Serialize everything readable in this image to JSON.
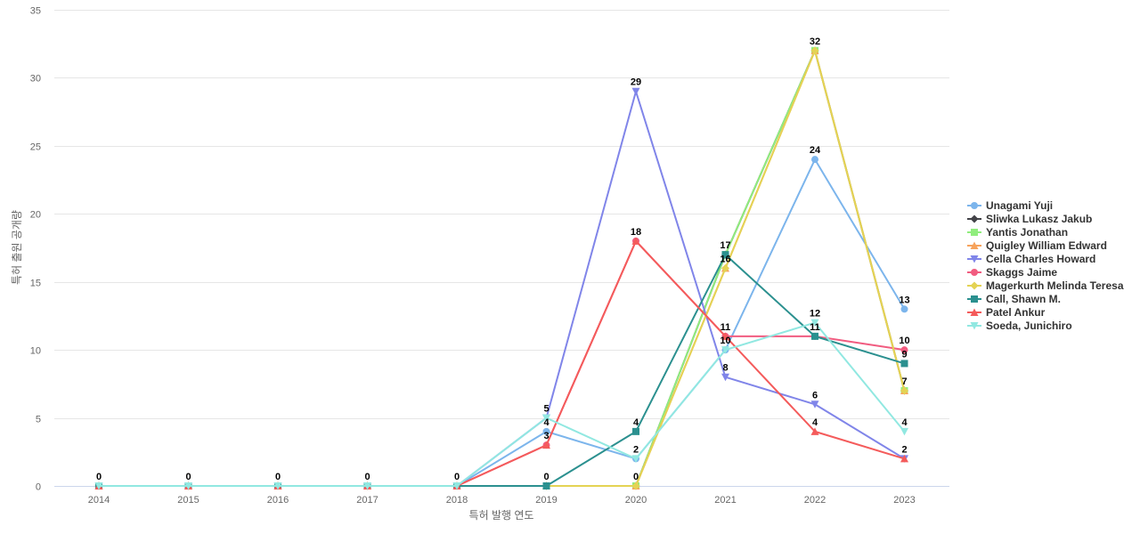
{
  "chart_data": {
    "type": "line",
    "title": "",
    "xlabel": "특허 발행 연도",
    "ylabel": "특허 출원 공개량",
    "x": [
      "2014",
      "2015",
      "2016",
      "2017",
      "2018",
      "2019",
      "2020",
      "2021",
      "2022",
      "2023"
    ],
    "ylim": [
      0,
      35
    ],
    "yticks": [
      0,
      5,
      10,
      15,
      20,
      25,
      30,
      35
    ],
    "grid": true,
    "legend_position": "right",
    "series": [
      {
        "name": "Unagami Yuji",
        "color": "#7cb5ec",
        "marker": "circle",
        "values": [
          0,
          0,
          0,
          0,
          0,
          4,
          2,
          10,
          24,
          13
        ]
      },
      {
        "name": "Sliwka Lukasz Jakub",
        "color": "#434348",
        "marker": "diamond",
        "values": [
          0,
          0,
          0,
          0,
          0,
          0,
          0,
          17,
          32,
          7
        ]
      },
      {
        "name": "Yantis Jonathan",
        "color": "#90ed7d",
        "marker": "square",
        "values": [
          0,
          0,
          0,
          0,
          0,
          0,
          0,
          17,
          32,
          7
        ]
      },
      {
        "name": "Quigley William Edward",
        "color": "#f7a35c",
        "marker": "triangle",
        "values": [
          0,
          0,
          0,
          0,
          0,
          0,
          0,
          16,
          32,
          7
        ]
      },
      {
        "name": "Cella Charles Howard",
        "color": "#8085e9",
        "marker": "triangle-down",
        "values": [
          0,
          0,
          0,
          0,
          0,
          5,
          29,
          8,
          6,
          2
        ]
      },
      {
        "name": "Skaggs Jaime",
        "color": "#f15c80",
        "marker": "circle",
        "values": [
          0,
          0,
          0,
          0,
          0,
          3,
          18,
          11,
          11,
          10
        ]
      },
      {
        "name": "Magerkurth Melinda Teresa",
        "color": "#e4d354",
        "marker": "diamond",
        "values": [
          0,
          0,
          0,
          0,
          0,
          0,
          0,
          16,
          32,
          7
        ]
      },
      {
        "name": "Call, Shawn M.",
        "color": "#2b908f",
        "marker": "square",
        "values": [
          0,
          0,
          0,
          0,
          0,
          0,
          4,
          17,
          11,
          9
        ]
      },
      {
        "name": "Patel Ankur",
        "color": "#f45b5b",
        "marker": "triangle",
        "values": [
          0,
          0,
          0,
          0,
          0,
          3,
          18,
          11,
          4,
          2
        ]
      },
      {
        "name": "Soeda, Junichiro",
        "color": "#91e8e1",
        "marker": "triangle-down",
        "values": [
          0,
          0,
          0,
          0,
          0,
          5,
          2,
          10,
          12,
          4
        ]
      }
    ],
    "data_labels": [
      {
        "x": "2014",
        "text": "0",
        "y": 0
      },
      {
        "x": "2015",
        "text": "0",
        "y": 0
      },
      {
        "x": "2016",
        "text": "0",
        "y": 0
      },
      {
        "x": "2017",
        "text": "0",
        "y": 0
      },
      {
        "x": "2018",
        "text": "0",
        "y": 0
      },
      {
        "x": "2019",
        "text": "5",
        "y": 5
      },
      {
        "x": "2019",
        "text": "4",
        "y": 4
      },
      {
        "x": "2019",
        "text": "3",
        "y": 3
      },
      {
        "x": "2019",
        "text": "0",
        "y": 0
      },
      {
        "x": "2020",
        "text": "29",
        "y": 29
      },
      {
        "x": "2020",
        "text": "18",
        "y": 18
      },
      {
        "x": "2020",
        "text": "4",
        "y": 4
      },
      {
        "x": "2020",
        "text": "2",
        "y": 2
      },
      {
        "x": "2020",
        "text": "0",
        "y": 0
      },
      {
        "x": "2021",
        "text": "17",
        "y": 17
      },
      {
        "x": "2021",
        "text": "16",
        "y": 16
      },
      {
        "x": "2021",
        "text": "11",
        "y": 11
      },
      {
        "x": "2021",
        "text": "10",
        "y": 10
      },
      {
        "x": "2021",
        "text": "8",
        "y": 8
      },
      {
        "x": "2022",
        "text": "32",
        "y": 32
      },
      {
        "x": "2022",
        "text": "24",
        "y": 24
      },
      {
        "x": "2022",
        "text": "12",
        "y": 12
      },
      {
        "x": "2022",
        "text": "11",
        "y": 11
      },
      {
        "x": "2022",
        "text": "6",
        "y": 6
      },
      {
        "x": "2022",
        "text": "4",
        "y": 4
      },
      {
        "x": "2023",
        "text": "13",
        "y": 13
      },
      {
        "x": "2023",
        "text": "10",
        "y": 10
      },
      {
        "x": "2023",
        "text": "9",
        "y": 9
      },
      {
        "x": "2023",
        "text": "7",
        "y": 7
      },
      {
        "x": "2023",
        "text": "4",
        "y": 4
      },
      {
        "x": "2023",
        "text": "2",
        "y": 2
      }
    ]
  }
}
